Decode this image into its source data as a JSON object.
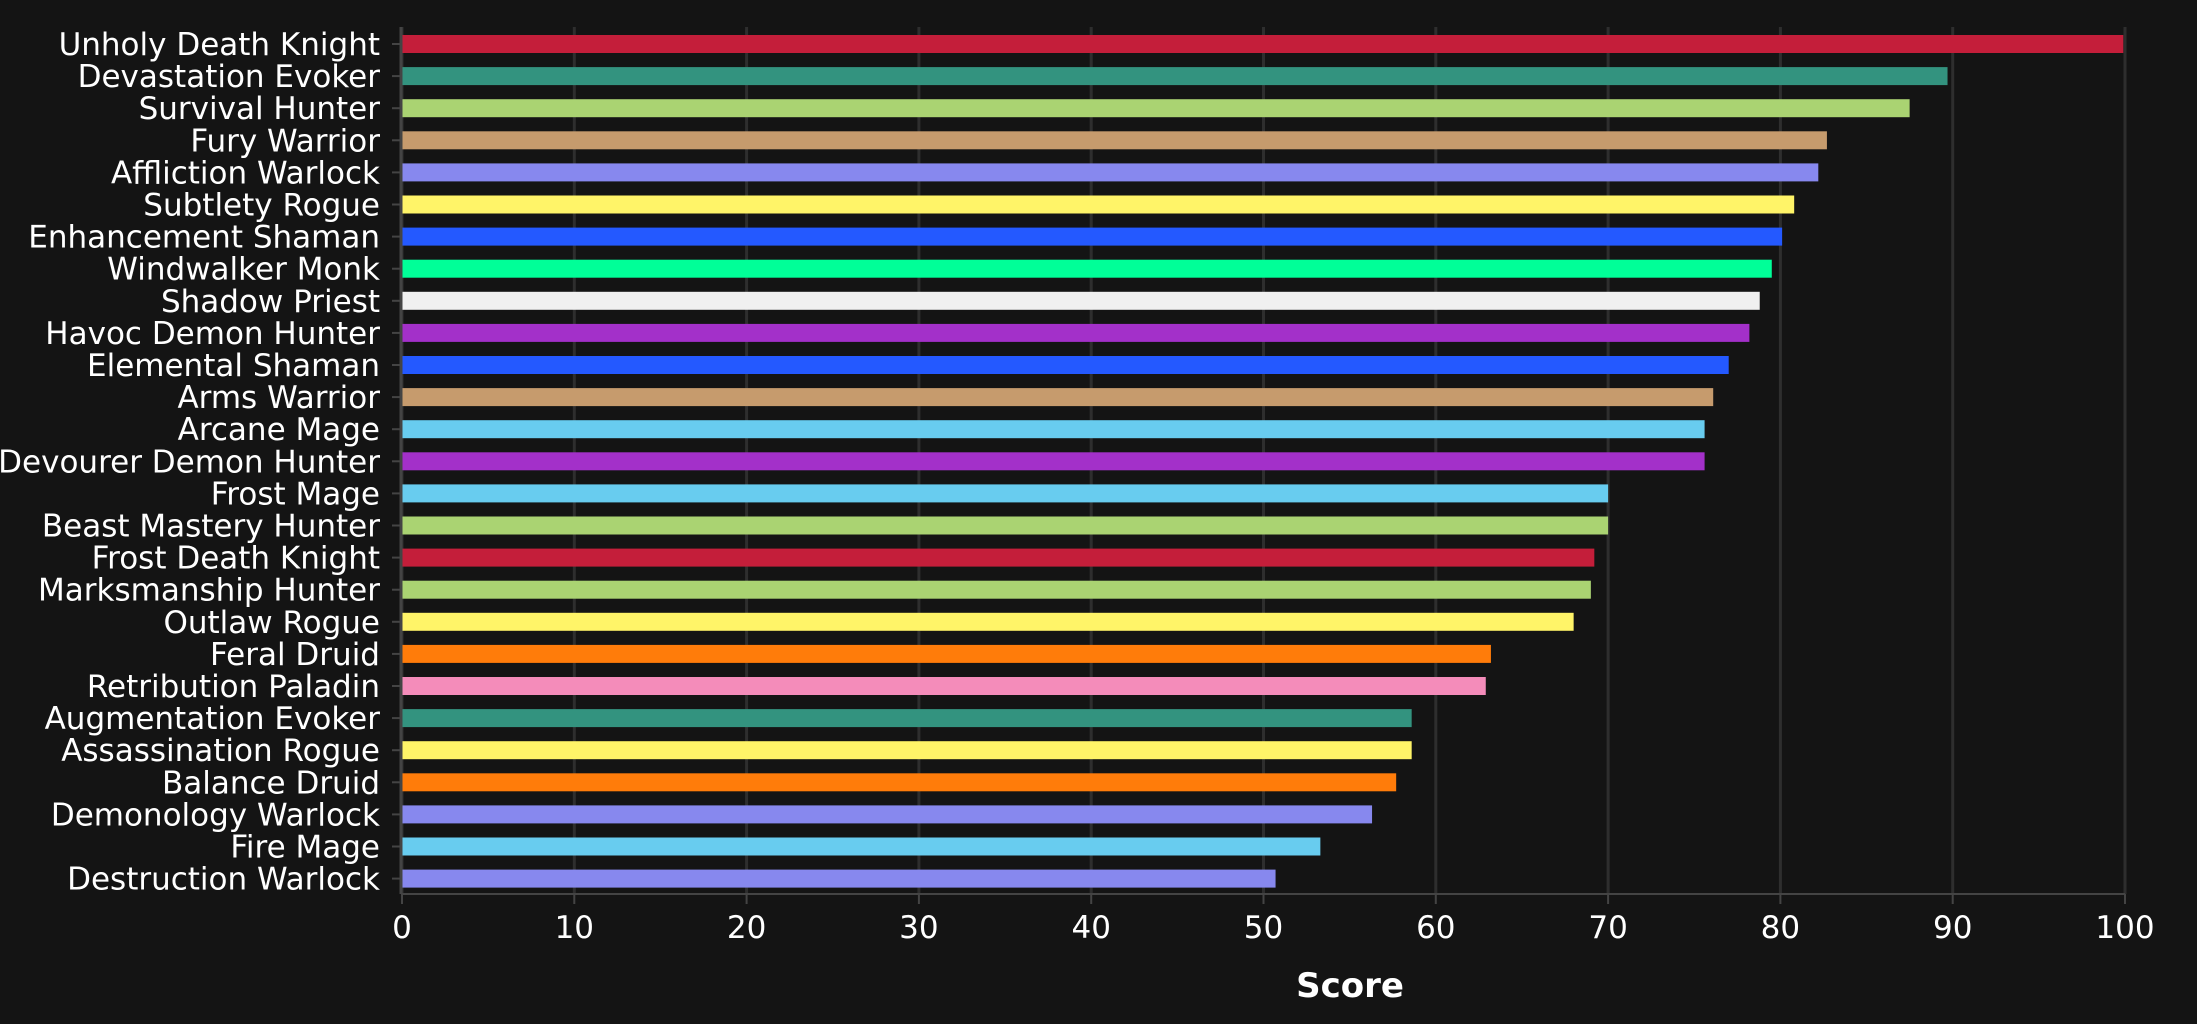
{
  "chart_data": {
    "type": "bar",
    "orientation": "horizontal",
    "xlabel": "Score",
    "ylabel": "",
    "title": "",
    "xlim": [
      0,
      100
    ],
    "xticks": [
      0,
      10,
      20,
      30,
      40,
      50,
      60,
      70,
      80,
      90,
      100
    ],
    "grid": true,
    "categories": [
      "Unholy Death Knight",
      "Devastation Evoker",
      "Survival Hunter",
      "Fury Warrior",
      "Affliction Warlock",
      "Subtlety Rogue",
      "Enhancement Shaman",
      "Windwalker Monk",
      "Shadow Priest",
      "Havoc Demon Hunter",
      "Elemental Shaman",
      "Arms Warrior",
      "Arcane Mage",
      "Devourer Demon Hunter",
      "Frost Mage",
      "Beast Mastery Hunter",
      "Frost Death Knight",
      "Marksmanship Hunter",
      "Outlaw Rogue",
      "Feral Druid",
      "Retribution Paladin",
      "Augmentation Evoker",
      "Assassination Rogue",
      "Balance Druid",
      "Demonology Warlock",
      "Fire Mage",
      "Destruction Warlock"
    ],
    "values": [
      99.9,
      89.7,
      87.5,
      82.7,
      82.2,
      80.8,
      80.1,
      79.5,
      78.8,
      78.2,
      77.0,
      76.1,
      75.6,
      75.6,
      70.0,
      70.0,
      69.2,
      69.0,
      68.0,
      63.2,
      62.9,
      58.6,
      58.6,
      57.7,
      56.3,
      53.3,
      50.7
    ],
    "colors": [
      "#C41E3A",
      "#33937F",
      "#AAD372",
      "#C69B6D",
      "#8788EE",
      "#FFF468",
      "#2459FF",
      "#00FF98",
      "#F0F0F0",
      "#A330C9",
      "#2459FF",
      "#C69B6D",
      "#68CCEF",
      "#A330C9",
      "#68CCEF",
      "#AAD372",
      "#C41E3A",
      "#AAD372",
      "#FFF468",
      "#FF7C0A",
      "#F48CBA",
      "#33937F",
      "#FFF468",
      "#FF7C0A",
      "#8788EE",
      "#68CCEF",
      "#8788EE"
    ]
  }
}
